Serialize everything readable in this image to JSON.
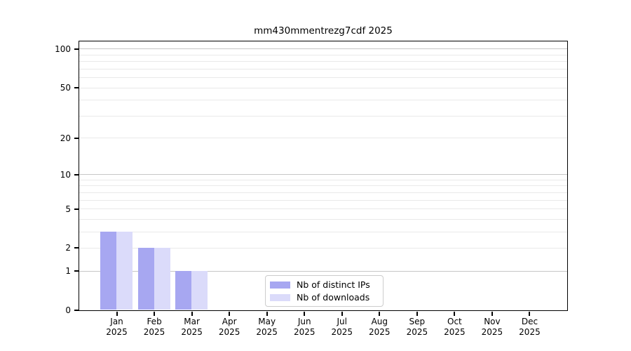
{
  "chart_data": {
    "type": "bar",
    "title": "mm430mmentrezg7cdf 2025",
    "categories": [
      "Jan 2025",
      "Feb 2025",
      "Mar 2025",
      "Apr 2025",
      "May 2025",
      "Jun 2025",
      "Jul 2025",
      "Aug 2025",
      "Sep 2025",
      "Oct 2025",
      "Nov 2025",
      "Dec 2025"
    ],
    "series": [
      {
        "name": "Nb of distinct IPs",
        "color": "#a7a7f1",
        "values": [
          3,
          2,
          1,
          0,
          0,
          0,
          0,
          0,
          0,
          0,
          0,
          0
        ]
      },
      {
        "name": "Nb of downloads",
        "color": "#dbdbfa",
        "values": [
          3,
          2,
          1,
          0,
          0,
          0,
          0,
          0,
          0,
          0,
          0,
          0
        ]
      }
    ],
    "y_axis": {
      "scale": "log10(1+v)",
      "lim": [
        0,
        100
      ],
      "major_ticks": [
        0,
        1,
        2,
        5,
        10,
        20,
        50,
        100
      ],
      "minor_gridlines": [
        3,
        4,
        6,
        7,
        8,
        9,
        30,
        40,
        60,
        70,
        80,
        90
      ],
      "decade_gridlines": [
        1,
        10,
        100
      ]
    },
    "x_axis": {
      "lim_note": "12 months, Jan-Dec 2025"
    },
    "grid": true,
    "legend_position": "lower center"
  },
  "colors": {
    "background": "#ffffff",
    "axis": "#000000",
    "gridline_minor": "#e9e9e9",
    "gridline_decade": "#c7c7c7",
    "legend_border": "#cccccc",
    "bar_distinct_ips": "#a7a7f1",
    "bar_downloads": "#dbdbfa"
  }
}
